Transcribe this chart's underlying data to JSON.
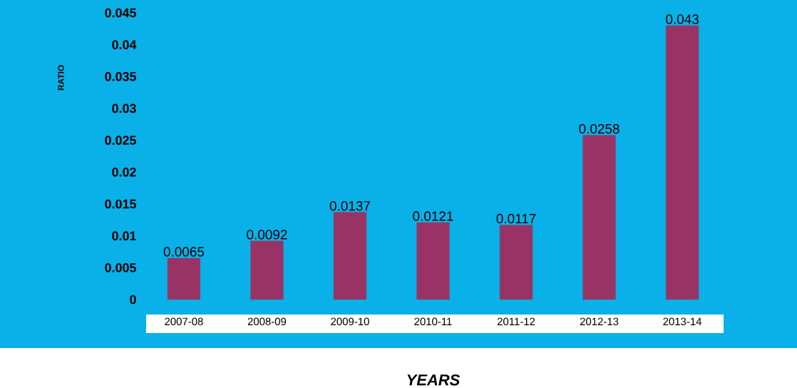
{
  "chart_data": {
    "type": "bar",
    "xlabel": "YEARS",
    "ylabel": "RATIO",
    "categories": [
      "2007-08",
      "2008-09",
      "2009-10",
      "2010-11",
      "2011-12",
      "2012-13",
      "2013-14"
    ],
    "values": [
      0.0065,
      0.0092,
      0.0137,
      0.0121,
      0.0117,
      0.0258,
      0.043
    ],
    "color": "#993366",
    "ylim": [
      0,
      0.045
    ],
    "yticks": [
      0,
      0.005,
      0.01,
      0.015,
      0.02,
      0.025,
      0.03,
      0.035,
      0.04,
      0.045
    ],
    "data_labels": true
  }
}
